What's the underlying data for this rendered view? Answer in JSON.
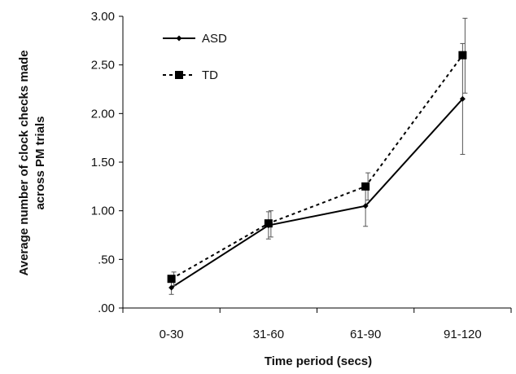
{
  "chart_data": {
    "type": "line",
    "categories": [
      "0-30",
      "31-60",
      "61-90",
      "91-120"
    ],
    "xlabel": "Time period (secs)",
    "ylabel_lines": [
      "Average number of clock checks made",
      "across PM trials"
    ],
    "ylim": [
      0,
      3
    ],
    "yticks": [
      ".00",
      ".50",
      "1.00",
      "1.50",
      "2.00",
      "2.50",
      "3.00"
    ],
    "ytick_values": [
      0,
      0.5,
      1,
      1.5,
      2,
      2.5,
      3
    ],
    "grid": false,
    "legend_position": "top-left",
    "series": [
      {
        "name": "ASD",
        "marker": "diamond",
        "line_style": "solid",
        "color": "#000000",
        "values": [
          0.21,
          0.85,
          1.05,
          2.15
        ],
        "error_low": [
          0.14,
          0.71,
          0.84,
          1.58
        ],
        "error_high": [
          0.28,
          0.99,
          1.26,
          2.72
        ]
      },
      {
        "name": "TD",
        "marker": "square",
        "line_style": "dashed",
        "color": "#000000",
        "values": [
          0.3,
          0.87,
          1.25,
          2.6
        ],
        "error_low": [
          0.23,
          0.73,
          1.11,
          2.21
        ],
        "error_high": [
          0.37,
          1.0,
          1.39,
          2.98
        ]
      }
    ]
  }
}
